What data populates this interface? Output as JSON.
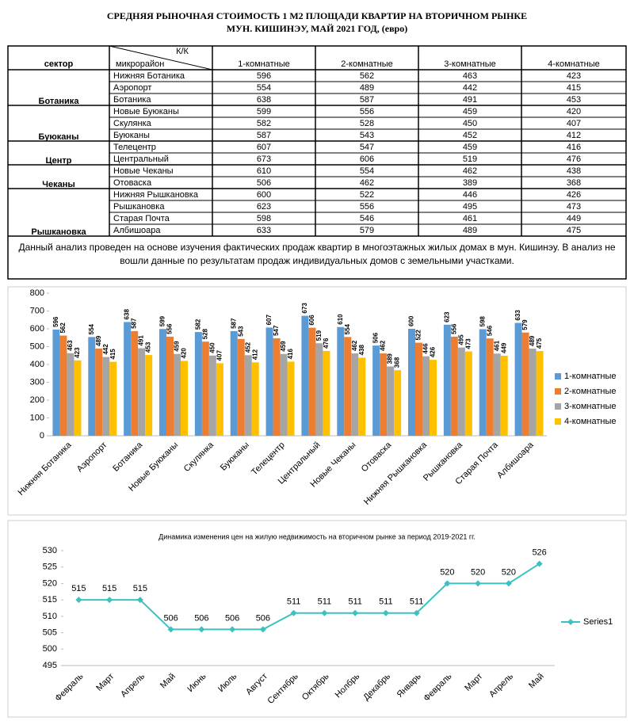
{
  "header": {
    "title_line1": "СРЕДНЯЯ  РЫНОЧНАЯ  СТОИМОСТЬ  1 М2  ПЛОЩАДИ  КВАРТИР НА ВТОРИЧНОМ РЫНКЕ",
    "title_line2": "МУН.  КИШИНЭУ, МАЙ 2021 ГОД, (евро)"
  },
  "table": {
    "col_sector": "сектор",
    "col_kk": "К/К",
    "col_district": "микрорайон",
    "columns": [
      "1-комнатные",
      "2-комнатные",
      "3-комнатные",
      "4-комнатные"
    ],
    "groups": [
      {
        "sector": "Ботаника",
        "rows": [
          [
            "Нижняя Ботаника",
            596,
            562,
            463,
            423
          ],
          [
            "Аэропорт",
            554,
            489,
            442,
            415
          ],
          [
            "Ботаника",
            638,
            587,
            491,
            453
          ]
        ]
      },
      {
        "sector": "Буюканы",
        "rows": [
          [
            "Новые Буюканы",
            599,
            556,
            459,
            420
          ],
          [
            "Скулянка",
            582,
            528,
            450,
            407
          ],
          [
            "Буюканы",
            587,
            543,
            452,
            412
          ]
        ]
      },
      {
        "sector": "Центр",
        "rows": [
          [
            "Телецентр",
            607,
            547,
            459,
            416
          ],
          [
            "Центральный",
            673,
            606,
            519,
            476
          ]
        ]
      },
      {
        "sector": "Чеканы",
        "rows": [
          [
            "Новые Чеканы",
            610,
            554,
            462,
            438
          ],
          [
            "Отоваска",
            506,
            462,
            389,
            368
          ]
        ]
      },
      {
        "sector": "Рышкановка",
        "rows": [
          [
            "Нижняя Рышкановка",
            600,
            522,
            446,
            426
          ],
          [
            "Рышкановка",
            623,
            556,
            495,
            473
          ],
          [
            "Старая Почта",
            598,
            546,
            461,
            449
          ],
          [
            "Албишоара",
            633,
            579,
            489,
            475
          ]
        ]
      }
    ]
  },
  "note": "Данный анализ проведен на основе изучения фактических продаж квартир в многоэтажных жилых домах в мун. Кишинэу. В анализ не вошли данные по результатам  продаж индивидуальных домов с земельными участками.",
  "chart_data": [
    {
      "type": "bar",
      "categories": [
        "Нижняя Ботаника",
        "Аэропорт",
        "Ботаника",
        "Новые Буюканы",
        "Скулянка",
        "Буюканы",
        "Телецентр",
        "Центральный",
        "Новые Чеканы",
        "Отоваска",
        "Нижняя Рышкановка",
        "Рышкановка",
        "Старая Почта",
        "Албишоара"
      ],
      "series": [
        {
          "name": "1-комнатные",
          "color": "#5b9bd5",
          "values": [
            596,
            554,
            638,
            599,
            582,
            587,
            607,
            673,
            610,
            506,
            600,
            623,
            598,
            633
          ]
        },
        {
          "name": "2-комнатные",
          "color": "#ed7d31",
          "values": [
            562,
            489,
            587,
            556,
            528,
            543,
            547,
            606,
            554,
            462,
            522,
            556,
            546,
            579
          ]
        },
        {
          "name": "3-комнатные",
          "color": "#a5a5a5",
          "values": [
            463,
            442,
            491,
            459,
            450,
            452,
            459,
            519,
            462,
            389,
            446,
            495,
            461,
            489
          ]
        },
        {
          "name": "4-комнатные",
          "color": "#ffc000",
          "values": [
            423,
            415,
            453,
            420,
            407,
            412,
            416,
            476,
            438,
            368,
            426,
            473,
            449,
            475
          ]
        }
      ],
      "ylim": [
        0,
        800
      ],
      "yticks": [
        0,
        100,
        200,
        300,
        400,
        500,
        600,
        700,
        800
      ],
      "grid": false,
      "legend": "right"
    },
    {
      "type": "line",
      "title": "Динамика изменения цен на жилую недвижимость на вторичном рынке за период 2019-2021 гг.",
      "categories": [
        "Февраль",
        "Март",
        "Апрель",
        "Май",
        "Июнь",
        "Июль",
        "Август",
        "Сентябрь",
        "Октябрь",
        "Нолбрь",
        "Декабрь",
        "Январь",
        "Февраль",
        "Март",
        "Апрель",
        "Май"
      ],
      "series": [
        {
          "name": "Series1",
          "color": "#3cc0c0",
          "values": [
            515,
            515,
            515,
            506,
            506,
            506,
            506,
            511,
            511,
            511,
            511,
            511,
            520,
            520,
            520,
            526
          ]
        }
      ],
      "ylim": [
        495,
        530
      ],
      "yticks": [
        495,
        500,
        505,
        510,
        515,
        520,
        525,
        530
      ],
      "grid": false,
      "legend": "right"
    }
  ]
}
